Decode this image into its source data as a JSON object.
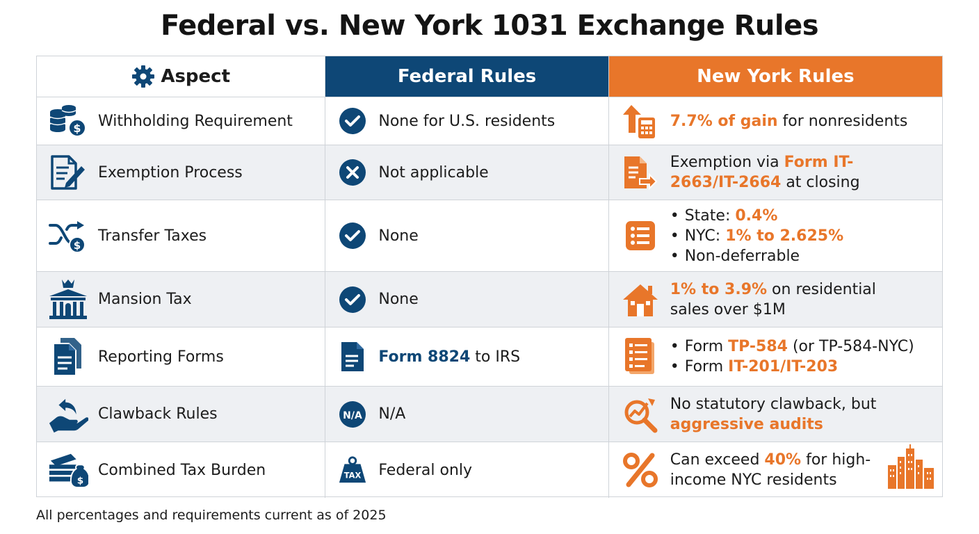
{
  "title": "Federal vs. New York 1031 Exchange Rules",
  "colors": {
    "navy": "#0e4776",
    "orange": "#e8762a",
    "row_alt": "#eef0f3"
  },
  "header": {
    "aspect": "Aspect",
    "federal": "Federal Rules",
    "new_york": "New York Rules",
    "aspect_icon": "gear-icon"
  },
  "rows": [
    {
      "aspect": "Withholding Requirement",
      "aspect_icon": "coins-dollar-icon",
      "federal_icon": "check-circle-icon",
      "federal": "None for U.S. residents",
      "ny_icon": "arrow-up-calculator-icon",
      "ny_hl": "7.7% of gain",
      "ny_rest": " for nonresidents"
    },
    {
      "aspect": "Exemption Process",
      "aspect_icon": "document-pen-icon",
      "federal_icon": "x-circle-icon",
      "federal": "Not applicable",
      "ny_icon": "document-arrow-icon",
      "ny_pre": "Exemption via ",
      "ny_hl": "Form IT-2663/IT-2664",
      "ny_rest": " at closing"
    },
    {
      "aspect": "Transfer Taxes",
      "aspect_icon": "shuffle-dollar-icon",
      "federal_icon": "check-circle-icon",
      "federal": "None",
      "ny_icon": "list-icon",
      "ny_bullets": [
        {
          "pre": "State: ",
          "hl": "0.4%"
        },
        {
          "pre": "NYC: ",
          "hl": "1% to 2.625%"
        },
        {
          "pre": "Non-deferrable",
          "hl": ""
        }
      ]
    },
    {
      "aspect": "Mansion Tax",
      "aspect_icon": "crown-building-icon",
      "federal_icon": "check-circle-icon",
      "federal": "None",
      "ny_icon": "house-icon",
      "ny_hl": "1% to 3.9%",
      "ny_rest": " on residential sales over $1M"
    },
    {
      "aspect": "Reporting Forms",
      "aspect_icon": "documents-icon",
      "federal_icon": "document-icon",
      "federal_hl": "Form 8824",
      "federal_rest": " to IRS",
      "ny_icon": "form-list-icon",
      "ny_bullets": [
        {
          "pre": "Form ",
          "hl": "TP-584",
          "post": " (or TP-584-NYC)"
        },
        {
          "pre": "Form ",
          "hl": "IT-201/IT-203",
          "post": ""
        }
      ]
    },
    {
      "aspect": "Clawback Rules",
      "aspect_icon": "hand-return-arrow-icon",
      "federal_icon": "na-circle-icon",
      "federal_icon_text": "N/A",
      "federal": "N/A",
      "ny_icon": "magnifier-chart-icon",
      "ny_pre": "No statutory clawback, but ",
      "ny_hl": "aggressive audits",
      "ny_rest": ""
    },
    {
      "aspect": "Combined Tax Burden",
      "aspect_icon": "money-stack-icon",
      "federal_icon": "tax-weight-icon",
      "federal_icon_text": "TAX",
      "federal": "Federal only",
      "ny_icon": "percent-icon",
      "ny_pre": "Can exceed ",
      "ny_hl": "40%",
      "ny_rest": " for high-income NYC residents",
      "ny_extra_icon": "city-skyline-icon"
    }
  ],
  "footnote": "All percentages and requirements current as of 2025"
}
